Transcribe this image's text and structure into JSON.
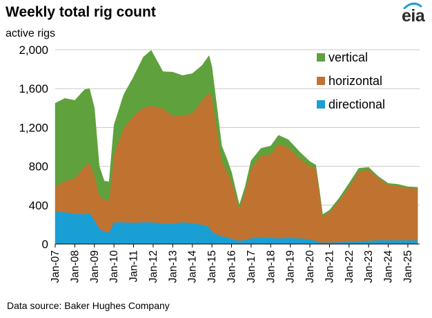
{
  "header": {
    "title": "Weekly total rig count",
    "unit": "active rigs"
  },
  "branding": {
    "logo_text": "eia",
    "logo_arc_color": "#1a9fd4"
  },
  "footer": {
    "source": "Data source: Baker Hughes Company"
  },
  "chart_data": {
    "type": "area",
    "stacked": true,
    "x": [
      2007.0,
      2007.5,
      2008.0,
      2008.5,
      2008.75,
      2009.0,
      2009.25,
      2009.5,
      2009.75,
      2010.0,
      2010.5,
      2011.0,
      2011.5,
      2011.9,
      2012.5,
      2013.0,
      2013.5,
      2014.0,
      2014.5,
      2014.85,
      2015.0,
      2015.5,
      2015.75,
      2016.0,
      2016.4,
      2016.7,
      2017.0,
      2017.5,
      2018.0,
      2018.4,
      2018.9,
      2019.5,
      2020.0,
      2020.3,
      2020.5,
      2020.65,
      2021.0,
      2021.5,
      2022.0,
      2022.5,
      2023.0,
      2023.5,
      2024.0,
      2024.5,
      2025.0,
      2025.5
    ],
    "series": [
      {
        "name": "directional",
        "color": "#1a9fd4",
        "values": [
          330,
          330,
          310,
          310,
          320,
          250,
          160,
          130,
          120,
          225,
          225,
          220,
          225,
          225,
          215,
          210,
          225,
          215,
          200,
          180,
          125,
          80,
          75,
          55,
          35,
          45,
          60,
          70,
          65,
          60,
          65,
          60,
          50,
          35,
          18,
          15,
          18,
          20,
          25,
          30,
          35,
          40,
          40,
          40,
          40,
          40
        ]
      },
      {
        "name": "horizontal",
        "color": "#c07330",
        "values": [
          260,
          320,
          370,
          490,
          520,
          460,
          340,
          330,
          330,
          700,
          975,
          1100,
          1180,
          1200,
          1180,
          1110,
          1100,
          1130,
          1280,
          1380,
          1390,
          780,
          680,
          590,
          330,
          500,
          720,
          840,
          860,
          970,
          930,
          820,
          750,
          760,
          500,
          270,
          310,
          430,
          560,
          720,
          730,
          640,
          570,
          560,
          535,
          535
        ]
      },
      {
        "name": "vertical",
        "color": "#5fa13c",
        "values": [
          860,
          850,
          800,
          790,
          760,
          690,
          300,
          190,
          190,
          300,
          340,
          400,
          520,
          570,
          380,
          450,
          410,
          410,
          360,
          380,
          310,
          150,
          130,
          95,
          35,
          50,
          80,
          75,
          85,
          90,
          80,
          65,
          50,
          20,
          20,
          18,
          20,
          25,
          40,
          30,
          25,
          15,
          15,
          15,
          15,
          10
        ]
      }
    ],
    "x_ticks": [
      2007,
      2008,
      2009,
      2010,
      2011,
      2012,
      2013,
      2014,
      2015,
      2016,
      2017,
      2018,
      2019,
      2020,
      2021,
      2022,
      2023,
      2024,
      2025
    ],
    "x_tick_labels": [
      "Jan-07",
      "Jan-08",
      "Jan-09",
      "Jan-10",
      "Jan-11",
      "Jan-12",
      "Jan-13",
      "Jan-14",
      "Jan-15",
      "Jan-16",
      "Jan-17",
      "Jan-18",
      "Jan-19",
      "Jan-20",
      "Jan-21",
      "Jan-22",
      "Jan-23",
      "Jan-24",
      "Jan-25"
    ],
    "xlim": [
      2007,
      2025.6
    ],
    "y_ticks": [
      0,
      400,
      800,
      1200,
      1600,
      2000
    ],
    "y_tick_labels": [
      "0",
      "400",
      "800",
      "1,200",
      "1,600",
      "2,000"
    ],
    "ylim": [
      0,
      2000
    ],
    "grid": "horizontal",
    "legend_position": "top-right"
  }
}
